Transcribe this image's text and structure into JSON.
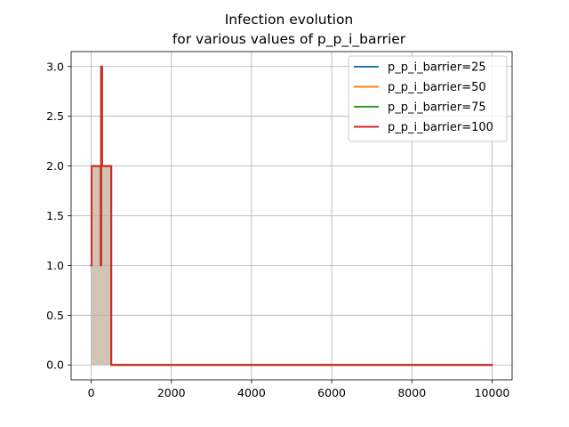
{
  "chart_data": {
    "type": "line",
    "title": "Infection evolution",
    "subtitle": "for various values of p_p_i_barrier",
    "xlabel": "",
    "ylabel": "",
    "xlim": [
      -500,
      10500
    ],
    "ylim": [
      -0.15,
      3.15
    ],
    "xticks": [
      0,
      2000,
      4000,
      6000,
      8000,
      10000
    ],
    "yticks": [
      0.0,
      0.5,
      1.0,
      1.5,
      2.0,
      2.5,
      3.0
    ],
    "grid": true,
    "legend_position": "upper-right",
    "series": [
      {
        "name": "p_p_i_barrier=25",
        "color": "#1f77b4",
        "x": [
          0,
          10,
          10,
          240,
          240,
          250,
          250,
          270,
          270,
          500,
          500,
          10000
        ],
        "y": [
          1,
          1,
          2,
          2,
          1,
          1,
          3,
          3,
          2,
          2,
          0,
          0
        ]
      },
      {
        "name": "p_p_i_barrier=50",
        "color": "#ff7f0e",
        "x": [
          0,
          10,
          10,
          240,
          240,
          250,
          250,
          270,
          270,
          500,
          500,
          10000
        ],
        "y": [
          1,
          1,
          2,
          2,
          1,
          1,
          3,
          3,
          2,
          2,
          0,
          0
        ]
      },
      {
        "name": "p_p_i_barrier=75",
        "color": "#2ca02c",
        "x": [
          0,
          10,
          10,
          240,
          240,
          250,
          250,
          270,
          270,
          500,
          500,
          10000
        ],
        "y": [
          1,
          1,
          2,
          2,
          1,
          1,
          3,
          3,
          2,
          2,
          0,
          0
        ]
      },
      {
        "name": "p_p_i_barrier=100",
        "color": "#d62728",
        "x": [
          0,
          10,
          10,
          240,
          240,
          250,
          250,
          270,
          270,
          500,
          500,
          10000
        ],
        "y": [
          1,
          1,
          2,
          2,
          1,
          1,
          3,
          3,
          2,
          2,
          0,
          0
        ]
      }
    ],
    "fill_color": "#d2c4b3"
  }
}
